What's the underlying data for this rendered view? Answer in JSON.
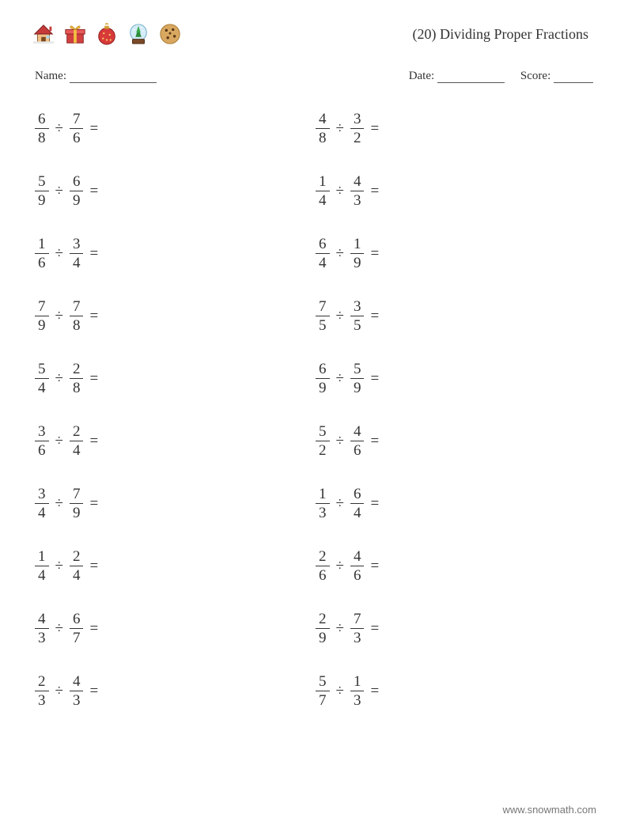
{
  "title": "(20) Dividing Proper Fractions",
  "labels": {
    "name": "Name:",
    "date": "Date:",
    "score": "Score:"
  },
  "operator": "÷",
  "equals": "=",
  "footer": "www.snowmath.com",
  "icons": [
    "house",
    "gift",
    "ornament",
    "snowglobe",
    "cookie"
  ],
  "icon_svgs": {
    "house": "<svg viewBox='0 0 32 32' width='30' height='30'><rect x='8' y='16' width='16' height='12' fill='#f2c288' stroke='#8a5a2a' stroke-width='1'/><polygon points='4,16 16,4 28,16' fill='#c73a3a' stroke='#7a1f1f' stroke-width='1'/><rect x='13' y='20' width='6' height='8' fill='#7a4a20'/><rect x='20' y='18' width='4' height='4' fill='#a8d8f0'/><rect x='24' y='6' width='3' height='6' fill='#c73a3a'/><rect x='2' y='26' width='28' height='3' fill='#e8e8e8'/></svg>",
    "gift": "<svg viewBox='0 0 32 32' width='30' height='30'><rect x='5' y='12' width='22' height='16' fill='#d14040' stroke='#8a1f1f' stroke-width='1'/><rect x='3' y='10' width='26' height='6' fill='#e85a5a' stroke='#8a1f1f' stroke-width='1'/><rect x='14' y='10' width='4' height='18' fill='#f2c040'/><path d='M16 10 C12 4 8 4 10 8 Z M16 10 C20 4 24 4 22 8 Z' fill='#f2c040' stroke='#c08820' stroke-width='0.8'/></svg>",
    "ornament": "<svg viewBox='0 0 32 32' width='30' height='30'><circle cx='16' cy='19' r='11' fill='#d83a3a' stroke='#8a1a1a' stroke-width='1'/><rect x='13' y='5' width='6' height='4' fill='#d0a030'/><path d='M14 3 Q16 1 18 3' fill='none' stroke='#d0a030' stroke-width='1.5'/><circle cx='12' cy='15' r='1.2' fill='#f5d060'/><circle cx='20' cy='17' r='1.2' fill='#f5d060'/><circle cx='16' cy='24' r='1.2' fill='#f5d060'/><circle cx='11' cy='22' r='1.2' fill='#f5d060'/><circle cx='21' cy='24' r='1.2' fill='#f5d060'/></svg>",
    "snowglobe": "<svg viewBox='0 0 32 32' width='30' height='30'><circle cx='16' cy='14' r='11' fill='#d4ecf7' stroke='#6aa8c4' stroke-width='1'/><polygon points='16,8 12,20 20,20' fill='#2a8a3a'/><polygon points='16,5 13,14 19,14' fill='#3aa84a'/><rect x='8' y='23' width='16' height='6' rx='1' fill='#7a4a28' stroke='#4a2a14' stroke-width='1'/><circle cx='10' cy='10' r='0.8' fill='#ffffff'/><circle cx='22' cy='12' r='0.8' fill='#ffffff'/><circle cx='20' cy='7' r='0.8' fill='#ffffff'/></svg>",
    "cookie": "<svg viewBox='0 0 32 32' width='30' height='30'><circle cx='16' cy='16' r='13' fill='#d8a860' stroke='#a87830' stroke-width='1'/><circle cx='11' cy='11' r='1.8' fill='#5a3618'/><circle cx='20' cy='10' r='1.8' fill='#5a3618'/><circle cx='22' cy='19' r='1.8' fill='#5a3618'/><circle cx='13' cy='21' r='1.8' fill='#5a3618'/><circle cx='16' cy='15' r='1.5' fill='#5a3618'/></svg>"
  },
  "colors": {
    "text": "#333333",
    "background": "#ffffff",
    "line": "#555555",
    "footer": "#777777"
  },
  "typography": {
    "title_fontsize": 18,
    "body_fontsize": 15,
    "problem_fontsize": 19,
    "footer_fontsize": 13,
    "family": "serif"
  },
  "layout": {
    "columns": 2,
    "rows": 10,
    "row_gap": 36
  },
  "problems_left": [
    {
      "n1": "6",
      "d1": "8",
      "n2": "7",
      "d2": "6"
    },
    {
      "n1": "5",
      "d1": "9",
      "n2": "6",
      "d2": "9"
    },
    {
      "n1": "1",
      "d1": "6",
      "n2": "3",
      "d2": "4"
    },
    {
      "n1": "7",
      "d1": "9",
      "n2": "7",
      "d2": "8"
    },
    {
      "n1": "5",
      "d1": "4",
      "n2": "2",
      "d2": "8"
    },
    {
      "n1": "3",
      "d1": "6",
      "n2": "2",
      "d2": "4"
    },
    {
      "n1": "3",
      "d1": "4",
      "n2": "7",
      "d2": "9"
    },
    {
      "n1": "1",
      "d1": "4",
      "n2": "2",
      "d2": "4"
    },
    {
      "n1": "4",
      "d1": "3",
      "n2": "6",
      "d2": "7"
    },
    {
      "n1": "2",
      "d1": "3",
      "n2": "4",
      "d2": "3"
    }
  ],
  "problems_right": [
    {
      "n1": "4",
      "d1": "8",
      "n2": "3",
      "d2": "2"
    },
    {
      "n1": "1",
      "d1": "4",
      "n2": "4",
      "d2": "3"
    },
    {
      "n1": "6",
      "d1": "4",
      "n2": "1",
      "d2": "9"
    },
    {
      "n1": "7",
      "d1": "5",
      "n2": "3",
      "d2": "5"
    },
    {
      "n1": "6",
      "d1": "9",
      "n2": "5",
      "d2": "9"
    },
    {
      "n1": "5",
      "d1": "2",
      "n2": "4",
      "d2": "6"
    },
    {
      "n1": "1",
      "d1": "3",
      "n2": "6",
      "d2": "4"
    },
    {
      "n1": "2",
      "d1": "6",
      "n2": "4",
      "d2": "6"
    },
    {
      "n1": "2",
      "d1": "9",
      "n2": "7",
      "d2": "3"
    },
    {
      "n1": "5",
      "d1": "7",
      "n2": "1",
      "d2": "3"
    }
  ]
}
